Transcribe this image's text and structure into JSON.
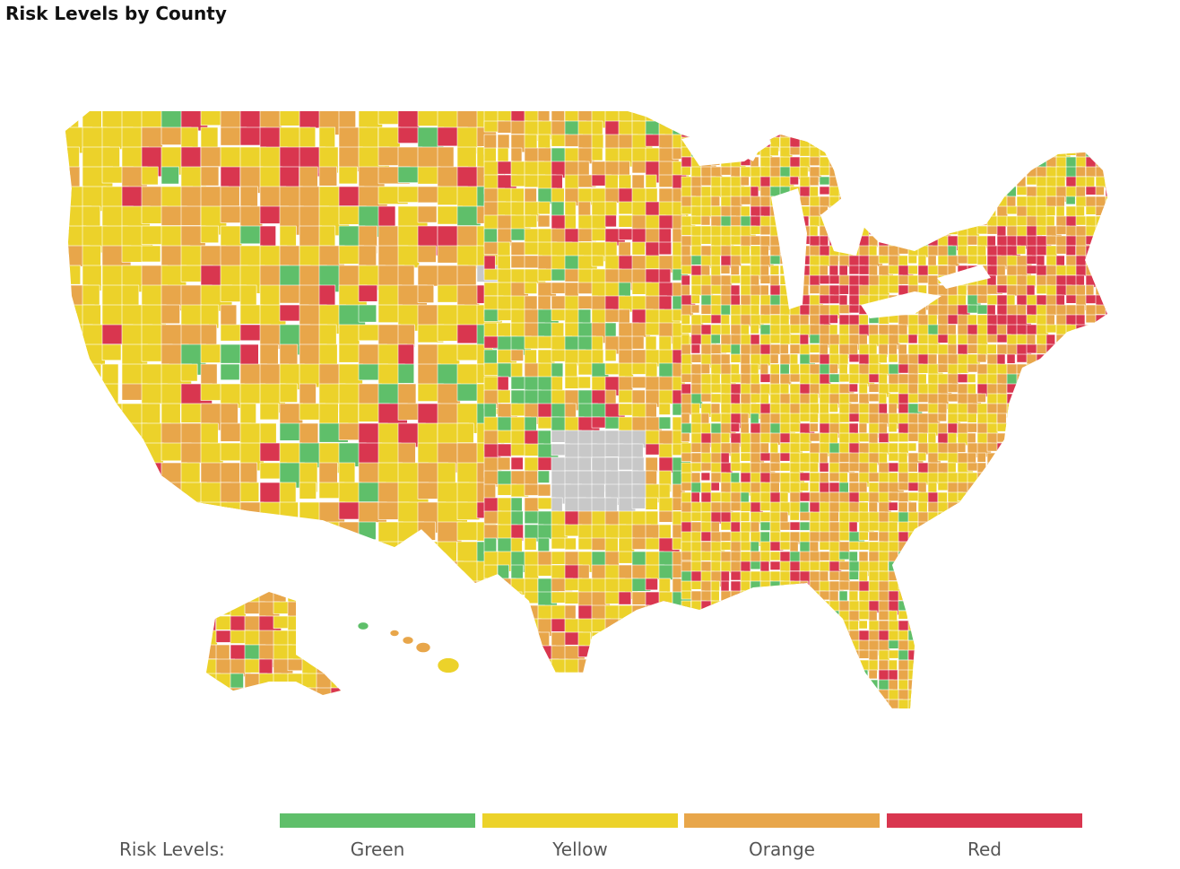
{
  "title": "Risk Levels by County",
  "legend": {
    "label": "Risk Levels:",
    "items": [
      {
        "name": "Green",
        "color": "#5fbf6a"
      },
      {
        "name": "Yellow",
        "color": "#ecd22a"
      },
      {
        "name": "Orange",
        "color": "#e8a64a"
      },
      {
        "name": "Red",
        "color": "#d9364f"
      }
    ],
    "no_data_color": "#c8c8c8",
    "border_color": "#ffffff"
  }
}
